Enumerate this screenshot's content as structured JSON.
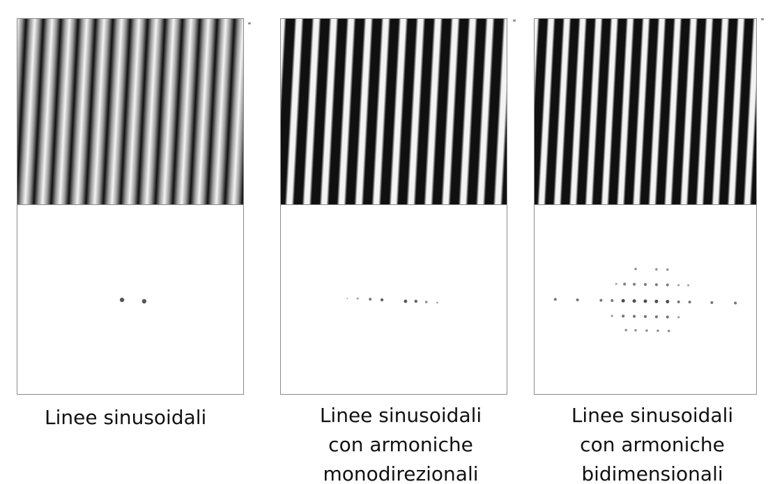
{
  "panels": [
    {
      "id": "panel-1",
      "pattern": "sinusoidal",
      "stripe_count": 13,
      "spectrum": "two-dots",
      "caption_lines": [
        "Linee sinusoidali"
      ]
    },
    {
      "id": "panel-2",
      "pattern": "sinusoidal-with-harmonics",
      "stripe_count": 13,
      "spectrum": "one-dimensional-row",
      "caption_lines": [
        "Linee sinusoidali",
        "con armoniche",
        "monodirezionali"
      ]
    },
    {
      "id": "panel-3",
      "pattern": "sinusoidal-with-harmonics-2d",
      "stripe_count": 14,
      "spectrum": "two-dimensional-grid",
      "caption_lines": [
        "Linee sinusoidali",
        "con armoniche",
        "bidimensionali"
      ]
    }
  ],
  "colors": {
    "stripe_dark": "#101010",
    "stripe_light": "#f4f4f4",
    "dot": "#3a3a3a",
    "border": "#8a8a8a"
  }
}
